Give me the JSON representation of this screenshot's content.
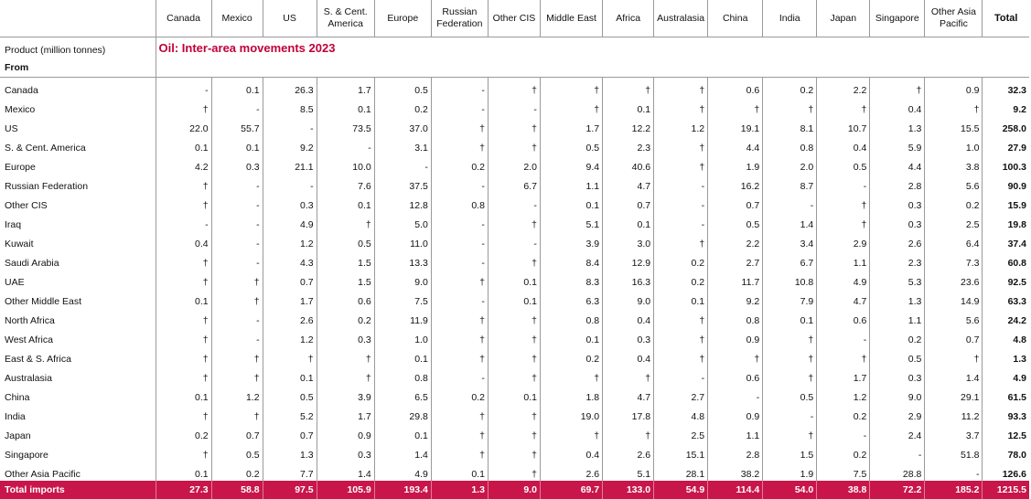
{
  "header": {
    "columns": [
      "Canada",
      "Mexico",
      "US",
      "S. & Cent. America",
      "Europe",
      "Russian Federation",
      "Other CIS",
      "Middle East",
      "Africa",
      "Australasia",
      "China",
      "India",
      "Japan",
      "Singapore",
      "Other Asia Pacific",
      "Total"
    ]
  },
  "title": "Oil: Inter-area movements 2023",
  "unit_label": "Product (million tonnes)",
  "from_label": "From",
  "rows": [
    {
      "name": "Canada",
      "values": [
        "-",
        "0.1",
        "26.3",
        "1.7",
        "0.5",
        "-",
        "†",
        "†",
        "†",
        "†",
        "0.6",
        "0.2",
        "2.2",
        "†",
        "0.9",
        "32.3"
      ]
    },
    {
      "name": "Mexico",
      "values": [
        "†",
        "-",
        "8.5",
        "0.1",
        "0.2",
        "-",
        "-",
        "†",
        "0.1",
        "†",
        "†",
        "†",
        "†",
        "0.4",
        "†",
        "9.2"
      ]
    },
    {
      "name": "US",
      "values": [
        "22.0",
        "55.7",
        "-",
        "73.5",
        "37.0",
        "†",
        "†",
        "1.7",
        "12.2",
        "1.2",
        "19.1",
        "8.1",
        "10.7",
        "1.3",
        "15.5",
        "258.0"
      ]
    },
    {
      "name": "S. & Cent. America",
      "values": [
        "0.1",
        "0.1",
        "9.2",
        "-",
        "3.1",
        "†",
        "†",
        "0.5",
        "2.3",
        "†",
        "4.4",
        "0.8",
        "0.4",
        "5.9",
        "1.0",
        "27.9"
      ]
    },
    {
      "name": "Europe",
      "values": [
        "4.2",
        "0.3",
        "21.1",
        "10.0",
        "-",
        "0.2",
        "2.0",
        "9.4",
        "40.6",
        "†",
        "1.9",
        "2.0",
        "0.5",
        "4.4",
        "3.8",
        "100.3"
      ]
    },
    {
      "name": "Russian Federation",
      "values": [
        "†",
        "-",
        "-",
        "7.6",
        "37.5",
        "-",
        "6.7",
        "1.1",
        "4.7",
        "-",
        "16.2",
        "8.7",
        "-",
        "2.8",
        "5.6",
        "90.9"
      ]
    },
    {
      "name": "Other CIS",
      "values": [
        "†",
        "-",
        "0.3",
        "0.1",
        "12.8",
        "0.8",
        "-",
        "0.1",
        "0.7",
        "-",
        "0.7",
        "-",
        "†",
        "0.3",
        "0.2",
        "15.9"
      ]
    },
    {
      "name": "Iraq",
      "values": [
        "-",
        "-",
        "4.9",
        "†",
        "5.0",
        "-",
        "†",
        "5.1",
        "0.1",
        "-",
        "0.5",
        "1.4",
        "†",
        "0.3",
        "2.5",
        "19.8"
      ]
    },
    {
      "name": "Kuwait",
      "values": [
        "0.4",
        "-",
        "1.2",
        "0.5",
        "11.0",
        "-",
        "-",
        "3.9",
        "3.0",
        "†",
        "2.2",
        "3.4",
        "2.9",
        "2.6",
        "6.4",
        "37.4"
      ]
    },
    {
      "name": "Saudi Arabia",
      "values": [
        "†",
        "-",
        "4.3",
        "1.5",
        "13.3",
        "-",
        "†",
        "8.4",
        "12.9",
        "0.2",
        "2.7",
        "6.7",
        "1.1",
        "2.3",
        "7.3",
        "60.8"
      ]
    },
    {
      "name": "UAE",
      "values": [
        "†",
        "†",
        "0.7",
        "1.5",
        "9.0",
        "†",
        "0.1",
        "8.3",
        "16.3",
        "0.2",
        "11.7",
        "10.8",
        "4.9",
        "5.3",
        "23.6",
        "92.5"
      ]
    },
    {
      "name": "Other Middle East",
      "values": [
        "0.1",
        "†",
        "1.7",
        "0.6",
        "7.5",
        "-",
        "0.1",
        "6.3",
        "9.0",
        "0.1",
        "9.2",
        "7.9",
        "4.7",
        "1.3",
        "14.9",
        "63.3"
      ]
    },
    {
      "name": "North Africa",
      "values": [
        "†",
        "-",
        "2.6",
        "0.2",
        "11.9",
        "†",
        "†",
        "0.8",
        "0.4",
        "†",
        "0.8",
        "0.1",
        "0.6",
        "1.1",
        "5.6",
        "24.2"
      ]
    },
    {
      "name": "West Africa",
      "values": [
        "†",
        "-",
        "1.2",
        "0.3",
        "1.0",
        "†",
        "†",
        "0.1",
        "0.3",
        "†",
        "0.9",
        "†",
        "-",
        "0.2",
        "0.7",
        "4.8"
      ]
    },
    {
      "name": "East & S. Africa",
      "values": [
        "†",
        "†",
        "†",
        "†",
        "0.1",
        "†",
        "†",
        "0.2",
        "0.4",
        "†",
        "†",
        "†",
        "†",
        "0.5",
        "†",
        "1.3"
      ]
    },
    {
      "name": "Australasia",
      "values": [
        "†",
        "†",
        "0.1",
        "†",
        "0.8",
        "-",
        "†",
        "†",
        "†",
        "-",
        "0.6",
        "†",
        "1.7",
        "0.3",
        "1.4",
        "4.9"
      ]
    },
    {
      "name": "China",
      "values": [
        "0.1",
        "1.2",
        "0.5",
        "3.9",
        "6.5",
        "0.2",
        "0.1",
        "1.8",
        "4.7",
        "2.7",
        "-",
        "0.5",
        "1.2",
        "9.0",
        "29.1",
        "61.5"
      ]
    },
    {
      "name": "India",
      "values": [
        "†",
        "†",
        "5.2",
        "1.7",
        "29.8",
        "†",
        "†",
        "19.0",
        "17.8",
        "4.8",
        "0.9",
        "-",
        "0.2",
        "2.9",
        "11.2",
        "93.3"
      ]
    },
    {
      "name": "Japan",
      "values": [
        "0.2",
        "0.7",
        "0.7",
        "0.9",
        "0.1",
        "†",
        "†",
        "†",
        "†",
        "2.5",
        "1.1",
        "†",
        "-",
        "2.4",
        "3.7",
        "12.5"
      ]
    },
    {
      "name": "Singapore",
      "values": [
        "†",
        "0.5",
        "1.3",
        "0.3",
        "1.4",
        "†",
        "†",
        "0.4",
        "2.6",
        "15.1",
        "2.8",
        "1.5",
        "0.2",
        "-",
        "51.8",
        "78.0"
      ]
    },
    {
      "name": "Other Asia Pacific",
      "values": [
        "0.1",
        "0.2",
        "7.7",
        "1.4",
        "4.9",
        "0.1",
        "†",
        "2.6",
        "5.1",
        "28.1",
        "38.2",
        "1.9",
        "7.5",
        "28.8",
        "-",
        "126.6"
      ]
    }
  ],
  "footer": {
    "label": "Total imports",
    "values": [
      "27.3",
      "58.8",
      "97.5",
      "105.9",
      "193.4",
      "1.3",
      "9.0",
      "69.7",
      "133.0",
      "54.9",
      "114.4",
      "54.0",
      "38.8",
      "72.2",
      "185.2",
      "1215.5"
    ]
  },
  "colors": {
    "accent": "#c8164b",
    "title": "#c0003a"
  }
}
